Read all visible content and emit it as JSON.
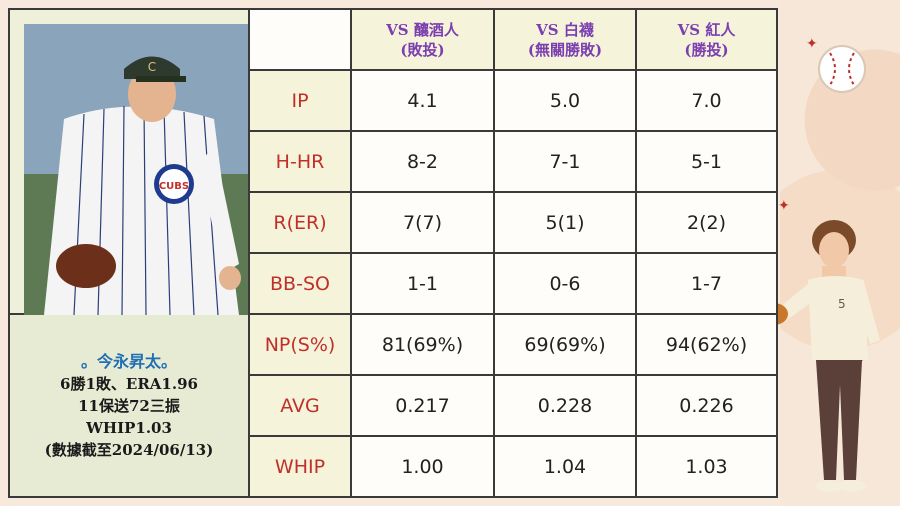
{
  "headers": [
    {
      "line1": "VS 釀酒人",
      "line2": "(敗投)"
    },
    {
      "line1": "VS 白襪",
      "line2": "(無關勝敗)"
    },
    {
      "line1": "VS 紅人",
      "line2": "(勝投)"
    }
  ],
  "rows": [
    {
      "label": "IP",
      "values": [
        "4.1",
        "5.0",
        "7.0"
      ]
    },
    {
      "label": "H-HR",
      "values": [
        "8-2",
        "7-1",
        "5-1"
      ]
    },
    {
      "label": "R(ER)",
      "values": [
        "7(7)",
        "5(1)",
        "2(2)"
      ]
    },
    {
      "label": "BB-SO",
      "values": [
        "1-1",
        "0-6",
        "1-7"
      ]
    },
    {
      "label": "NP(S%)",
      "values": [
        "81(69%)",
        "69(69%)",
        "94(62%)"
      ]
    },
    {
      "label": "AVG",
      "values": [
        "0.217",
        "0.228",
        "0.226"
      ]
    },
    {
      "label": "WHIP",
      "values": [
        "1.00",
        "1.04",
        "1.03"
      ]
    }
  ],
  "player": {
    "name": "。今永昇太。",
    "line1": "6勝1敗、ERA1.96",
    "line2": "11保送72三振",
    "line3": "WHIP1.03",
    "line4": "(數據截至2024/06/13)"
  },
  "photo": {
    "cap_logo": "C",
    "jersey_logo": "CUBS"
  },
  "illustration": {
    "shirt_number": "5"
  }
}
